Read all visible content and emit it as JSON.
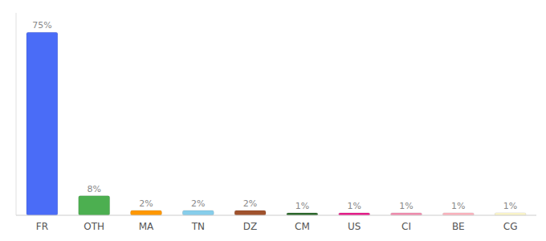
{
  "chart_data": {
    "type": "bar",
    "categories": [
      "FR",
      "OTH",
      "MA",
      "TN",
      "DZ",
      "CM",
      "US",
      "CI",
      "BE",
      "CG"
    ],
    "values": [
      75,
      8,
      2,
      2,
      2,
      1,
      1,
      1,
      1,
      1
    ],
    "value_labels": [
      "75%",
      "8%",
      "2%",
      "2%",
      "2%",
      "1%",
      "1%",
      "1%",
      "1%",
      "1%"
    ],
    "colors": [
      "#4a6cf7",
      "#4caf50",
      "#ff9800",
      "#87ceeb",
      "#a0522d",
      "#2d6a2d",
      "#e91e8c",
      "#f48fb1",
      "#ffb6c1",
      "#fffacd"
    ],
    "ylim": [
      0,
      83
    ],
    "tick_labels": "x",
    "data_labels": true
  }
}
